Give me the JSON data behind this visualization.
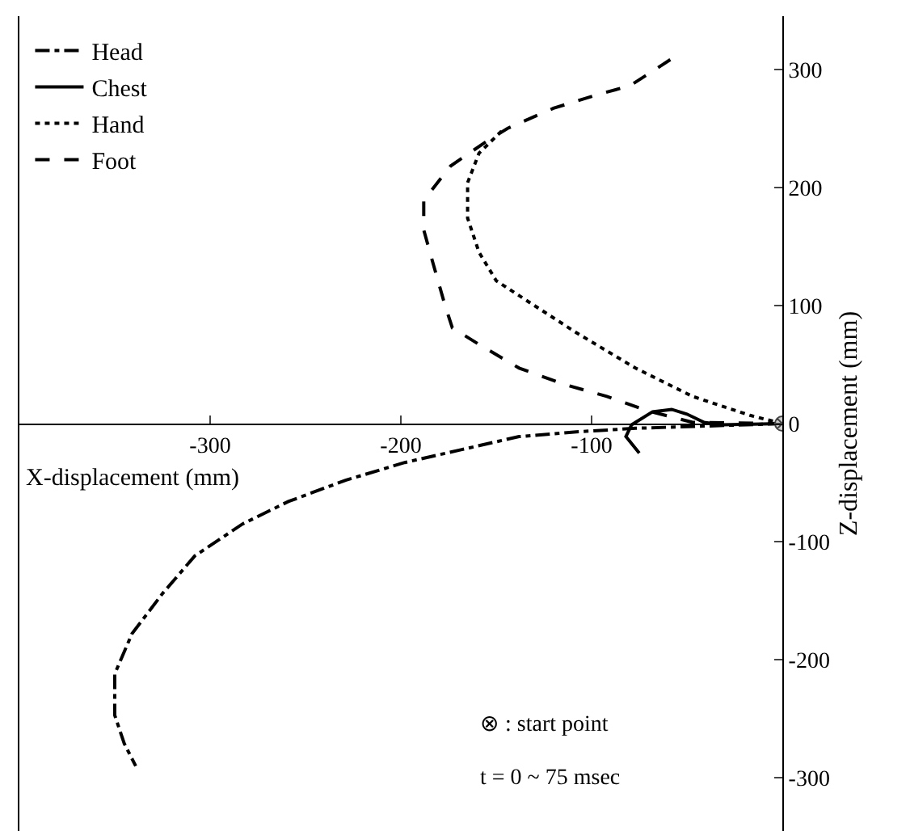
{
  "chart_data": {
    "type": "line",
    "xlabel": "X-displacement (mm)",
    "ylabel": "Z-displacement (mm)",
    "xlim": [
      -400,
      0
    ],
    "xticks": [
      -300,
      -200,
      -100
    ],
    "ylim": [
      -345,
      345
    ],
    "yticks": [
      -300,
      -200,
      -100,
      0,
      100,
      200,
      300
    ],
    "grid": false,
    "legend": "top left",
    "marker": "none",
    "series": [
      {
        "name": "Head",
        "color": "#000000",
        "line_style": "dashdot",
        "x": [
          0,
          -77,
          -108,
          -138,
          -168,
          -198,
          -229,
          -259,
          -283,
          -308,
          -325,
          -341,
          -350,
          -350,
          -345,
          -339
        ],
        "values": [
          0,
          -4,
          -7,
          -11,
          -22,
          -33,
          -48,
          -66,
          -85,
          -112,
          -144,
          -178,
          -212,
          -247,
          -271,
          -290
        ]
      },
      {
        "name": "Chest",
        "color": "#000000",
        "line_style": "solid",
        "x": [
          0,
          -32,
          -41,
          -50,
          -58,
          -68,
          -79,
          -82,
          -75
        ],
        "values": [
          0,
          -1,
          1,
          8,
          12,
          10,
          -1,
          -11,
          -25
        ]
      },
      {
        "name": "Hand",
        "color": "#000000",
        "line_style": "dotted",
        "x": [
          0,
          -17,
          -47,
          -77,
          -108,
          -131,
          -150,
          -159,
          -165,
          -165,
          -159,
          -147
        ],
        "values": [
          0,
          7,
          23,
          47,
          77,
          101,
          121,
          145,
          174,
          204,
          229,
          248
        ]
      },
      {
        "name": "Foot",
        "color": "#000000",
        "line_style": "dashed",
        "x": [
          0,
          -47,
          -71,
          -92,
          -114,
          -138,
          -159,
          -173,
          -177,
          -183,
          -188,
          -188,
          -174,
          -156,
          -144,
          -120,
          -96,
          -80,
          -56
        ],
        "values": [
          0,
          1,
          11,
          23,
          33,
          47,
          67,
          81,
          101,
          135,
          164,
          189,
          218,
          238,
          250,
          267,
          279,
          286,
          311
        ]
      }
    ],
    "annotations": [
      "⊗ : start point",
      "t = 0 ~ 75 msec"
    ]
  }
}
